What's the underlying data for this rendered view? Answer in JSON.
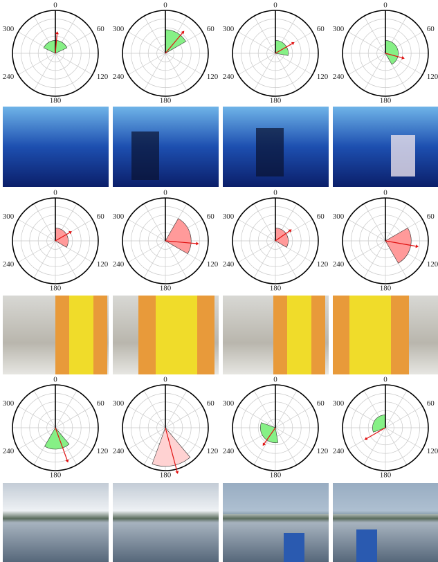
{
  "chart_data": [
    {
      "type": "polar",
      "thetaticks": [
        0,
        60,
        120,
        180,
        240,
        300
      ],
      "thetagrid": [
        0,
        30,
        60,
        90,
        120,
        150,
        180,
        210,
        240,
        270,
        300,
        330
      ],
      "rlim": [
        0,
        1
      ],
      "rticks": [
        0.2,
        0.4,
        0.6,
        0.8,
        1
      ],
      "wedge": [
        295,
        65
      ],
      "wedge_r": 0.3,
      "arrow_angle": 5,
      "arrow_length": 0.45,
      "color": "#86f086"
    },
    {
      "type": "polar",
      "thetaticks": [
        0,
        60,
        120,
        180,
        240,
        300
      ],
      "thetagrid": [
        0,
        30,
        60,
        90,
        120,
        150,
        180,
        210,
        240,
        270,
        300,
        330
      ],
      "rlim": [
        0,
        1
      ],
      "rticks": [
        0.2,
        0.4,
        0.6,
        0.8,
        1
      ],
      "wedge": [
        0,
        60
      ],
      "wedge_r": 0.55,
      "arrow_angle": 40,
      "arrow_length": 0.62,
      "color": "#86f086"
    },
    {
      "type": "polar",
      "thetaticks": [
        0,
        60,
        120,
        180,
        240,
        300
      ],
      "thetagrid": [
        0,
        30,
        60,
        90,
        120,
        150,
        180,
        210,
        240,
        270,
        300,
        330
      ],
      "rlim": [
        0,
        1
      ],
      "rticks": [
        0.2,
        0.4,
        0.6,
        0.8,
        1
      ],
      "wedge": [
        0,
        100
      ],
      "wedge_r": 0.3,
      "arrow_angle": 60,
      "arrow_length": 0.45,
      "color": "#86f086"
    },
    {
      "type": "polar",
      "thetaticks": [
        0,
        60,
        120,
        180,
        240,
        300
      ],
      "thetagrid": [
        0,
        30,
        60,
        90,
        120,
        150,
        180,
        210,
        240,
        270,
        300,
        330
      ],
      "rlim": [
        0,
        1
      ],
      "rticks": [
        0.2,
        0.4,
        0.6,
        0.8,
        1
      ],
      "wedge": [
        0,
        150
      ],
      "wedge_r": 0.3,
      "arrow_angle": 105,
      "arrow_length": 0.4,
      "color": "#86f086"
    },
    {
      "type": "polar",
      "thetaticks": [
        0,
        60,
        120,
        180,
        240,
        300
      ],
      "thetagrid": [
        0,
        30,
        60,
        90,
        120,
        150,
        180,
        210,
        240,
        270,
        300,
        330
      ],
      "rlim": [
        0,
        1
      ],
      "rticks": [
        0.2,
        0.4,
        0.6,
        0.8,
        1
      ],
      "wedge": [
        0,
        120
      ],
      "wedge_r": 0.3,
      "arrow_angle": 60,
      "arrow_length": 0.38,
      "color": "#ff9a9a"
    },
    {
      "type": "polar",
      "thetaticks": [
        0,
        60,
        120,
        180,
        240,
        300
      ],
      "thetagrid": [
        0,
        30,
        60,
        90,
        120,
        150,
        180,
        210,
        240,
        270,
        300,
        330
      ],
      "rlim": [
        0,
        1
      ],
      "rticks": [
        0.2,
        0.4,
        0.6,
        0.8,
        1
      ],
      "wedge": [
        30,
        120
      ],
      "wedge_r": 0.6,
      "arrow_angle": 95,
      "arrow_length": 0.72,
      "color": "#ff9a9a"
    },
    {
      "type": "polar",
      "thetaticks": [
        0,
        60,
        120,
        180,
        240,
        300
      ],
      "thetagrid": [
        0,
        30,
        60,
        90,
        120,
        150,
        180,
        210,
        240,
        270,
        300,
        330
      ],
      "rlim": [
        0,
        1
      ],
      "rticks": [
        0.2,
        0.4,
        0.6,
        0.8,
        1
      ],
      "wedge": [
        0,
        120
      ],
      "wedge_r": 0.3,
      "arrow_angle": 55,
      "arrow_length": 0.4,
      "color": "#ff9a9a"
    },
    {
      "type": "polar",
      "thetaticks": [
        0,
        60,
        120,
        180,
        240,
        300
      ],
      "thetagrid": [
        0,
        30,
        60,
        90,
        120,
        150,
        180,
        210,
        240,
        270,
        300,
        330
      ],
      "rlim": [
        0,
        1
      ],
      "rticks": [
        0.2,
        0.4,
        0.6,
        0.8,
        1
      ],
      "wedge": [
        60,
        150
      ],
      "wedge_r": 0.6,
      "arrow_angle": 100,
      "arrow_length": 0.72,
      "color": "#ff9a9a"
    },
    {
      "type": "polar",
      "thetaticks": [
        0,
        60,
        120,
        180,
        240,
        300
      ],
      "thetagrid": [
        0,
        30,
        60,
        90,
        120,
        150,
        180,
        210,
        240,
        270,
        300,
        330
      ],
      "rlim": [
        0,
        1
      ],
      "rticks": [
        0.2,
        0.4,
        0.6,
        0.8,
        1
      ],
      "wedge": [
        140,
        210
      ],
      "wedge_r": 0.5,
      "arrow_angle": 160,
      "arrow_length": 0.8,
      "color": "#86f086"
    },
    {
      "type": "polar",
      "thetaticks": [
        0,
        60,
        120,
        180,
        240,
        300
      ],
      "thetagrid": [
        0,
        30,
        60,
        90,
        120,
        150,
        180,
        210,
        240,
        270,
        300,
        330
      ],
      "rlim": [
        0,
        1
      ],
      "rticks": [
        0.2,
        0.4,
        0.6,
        0.8,
        1
      ],
      "wedge": [
        140,
        200
      ],
      "wedge_r": 0.9,
      "arrow_angle": 165,
      "arrow_length": 1.05,
      "color": "#ffd2d2"
    },
    {
      "type": "polar",
      "thetaticks": [
        0,
        60,
        120,
        180,
        240,
        300
      ],
      "thetagrid": [
        0,
        30,
        60,
        90,
        120,
        150,
        180,
        210,
        240,
        270,
        300,
        330
      ],
      "rlim": [
        0,
        1
      ],
      "rticks": [
        0.2,
        0.4,
        0.6,
        0.8,
        1
      ],
      "wedge": [
        170,
        290
      ],
      "wedge_r": 0.35,
      "arrow_angle": 215,
      "arrow_length": 0.45,
      "color": "#86f086"
    },
    {
      "type": "polar",
      "thetaticks": [
        0,
        60,
        120,
        180,
        240,
        300
      ],
      "thetagrid": [
        0,
        30,
        60,
        90,
        120,
        150,
        180,
        210,
        240,
        270,
        300,
        330
      ],
      "rlim": [
        0,
        1
      ],
      "rticks": [
        0.2,
        0.4,
        0.6,
        0.8,
        1
      ],
      "wedge": [
        250,
        360
      ],
      "wedge_r": 0.3,
      "arrow_angle": 240,
      "arrow_length": 0.5,
      "color": "#86f086"
    }
  ]
}
